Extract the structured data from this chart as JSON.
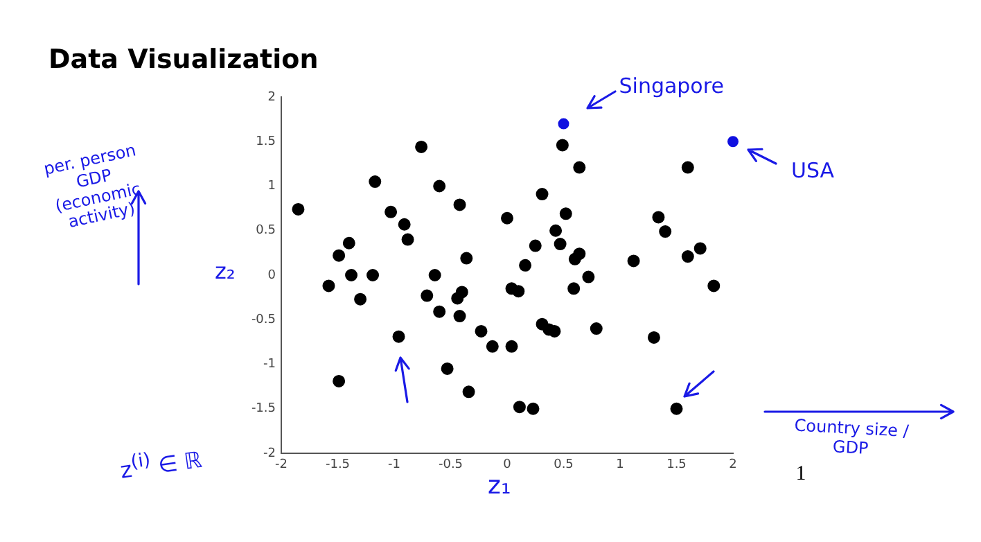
{
  "chart_data": {
    "type": "scatter",
    "title": "Data Visualization",
    "xlabel": "z₁",
    "ylabel": "z₂",
    "annotations": [
      {
        "text": "Singapore",
        "x": 0.5,
        "y": 1.7
      },
      {
        "text": "USA",
        "x": 2.0,
        "y": 1.5
      },
      "per. person GDP (economic activity)",
      "Country size / GDP",
      "z$^{(i)}$ ∈ ℝ",
      "1"
    ],
    "series": [
      {
        "color": "#000000",
        "x": [
          -1.85,
          -1.49,
          -1.4,
          -1.58,
          -1.38,
          -1.19,
          -1.3,
          -1.49,
          -0.96,
          -0.71,
          -0.6,
          -0.44,
          -0.4,
          -0.42,
          -0.64,
          -0.53,
          -0.34,
          -0.23,
          -0.13,
          -1.17,
          -1.03,
          -0.91,
          -0.88,
          -0.76,
          -0.6,
          -0.42,
          -0.36,
          0.0,
          0.49,
          0.64,
          1.6,
          0.31,
          0.52,
          0.43,
          0.25,
          0.47,
          0.16,
          0.6,
          0.64,
          1.12,
          1.34,
          1.4,
          1.6,
          1.71,
          0.72,
          0.59,
          1.83,
          0.04,
          0.1,
          0.31,
          0.37,
          0.42,
          0.79,
          1.3,
          0.04,
          0.11,
          0.23,
          1.5
        ],
        "values": [
          0.74,
          0.22,
          0.36,
          -0.12,
          0.0,
          0.0,
          -0.27,
          -1.19,
          -0.69,
          -0.23,
          -0.41,
          -0.26,
          -0.19,
          -0.46,
          0.0,
          -1.05,
          -1.31,
          -0.63,
          -0.8,
          1.05,
          0.71,
          0.57,
          0.4,
          1.44,
          1.0,
          0.79,
          0.19,
          0.64,
          1.46,
          1.21,
          1.21,
          0.91,
          0.69,
          0.5,
          0.33,
          0.35,
          0.11,
          0.18,
          0.24,
          0.16,
          0.65,
          0.49,
          0.21,
          0.3,
          -0.02,
          -0.15,
          -0.12,
          -0.15,
          -0.18,
          -0.55,
          -0.61,
          -0.63,
          -0.6,
          -0.7,
          -0.8,
          -1.48,
          -1.5,
          -1.5
        ]
      },
      {
        "color": "#1010e0",
        "x": [
          0.5,
          2.0
        ],
        "values": [
          1.7,
          1.5
        ]
      }
    ],
    "xlim": [
      -2,
      2
    ],
    "xticks": [
      -2,
      -1.5,
      -1,
      -0.5,
      0,
      0.5,
      1,
      1.5,
      2
    ],
    "ylim": [
      -2,
      2
    ],
    "yticks": [
      -2,
      -1.5,
      -1,
      -0.5,
      0,
      0.5,
      1,
      1.5,
      2
    ],
    "grid": false,
    "legend": false,
    "marker": "circle"
  }
}
